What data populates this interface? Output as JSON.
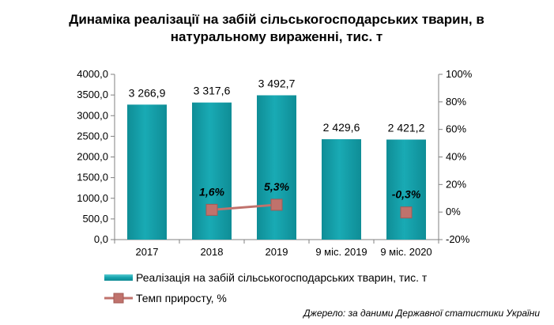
{
  "chart_data": {
    "type": "bar+line",
    "title": "Динаміка реалізації на забій сільськогосподарських тварин, в натуральному вираженні, тис. т",
    "categories": [
      "2017",
      "2018",
      "2019",
      "9 міс. 2019",
      "9 міс. 2020"
    ],
    "bars": {
      "name": "Реалізація на забій сільськогосподарських тварин, тис. т",
      "values": [
        3266.9,
        3317.6,
        3492.7,
        2429.6,
        2421.2
      ],
      "labels": [
        "3 266,9",
        "3 317,6",
        "3 492,7",
        "2 429,6",
        "2 421,2"
      ],
      "color": "#14a3ad"
    },
    "line": {
      "name": "Темп приросту, %",
      "values": [
        null,
        1.6,
        5.3,
        null,
        -0.3
      ],
      "labels": [
        "",
        "1,6%",
        "5,3%",
        "",
        "-0,3%"
      ],
      "color": "#c0726c"
    },
    "y_left": {
      "range": [
        0,
        4000
      ],
      "ticks": [
        0,
        500,
        1000,
        1500,
        2000,
        2500,
        3000,
        3500,
        4000
      ],
      "tick_labels": [
        "0,0",
        "500,0",
        "1000,0",
        "1500,0",
        "2000,0",
        "2500,0",
        "3000,0",
        "3500,0",
        "4000,0"
      ]
    },
    "y_right": {
      "range": [
        -20,
        100
      ],
      "ticks": [
        -20,
        0,
        20,
        40,
        60,
        80,
        100
      ],
      "tick_labels": [
        "-20%",
        "0%",
        "20%",
        "40%",
        "60%",
        "80%",
        "100%"
      ]
    },
    "grid": false,
    "legend": "bottom"
  },
  "source": "Джерело: за даними Державної статистики України"
}
